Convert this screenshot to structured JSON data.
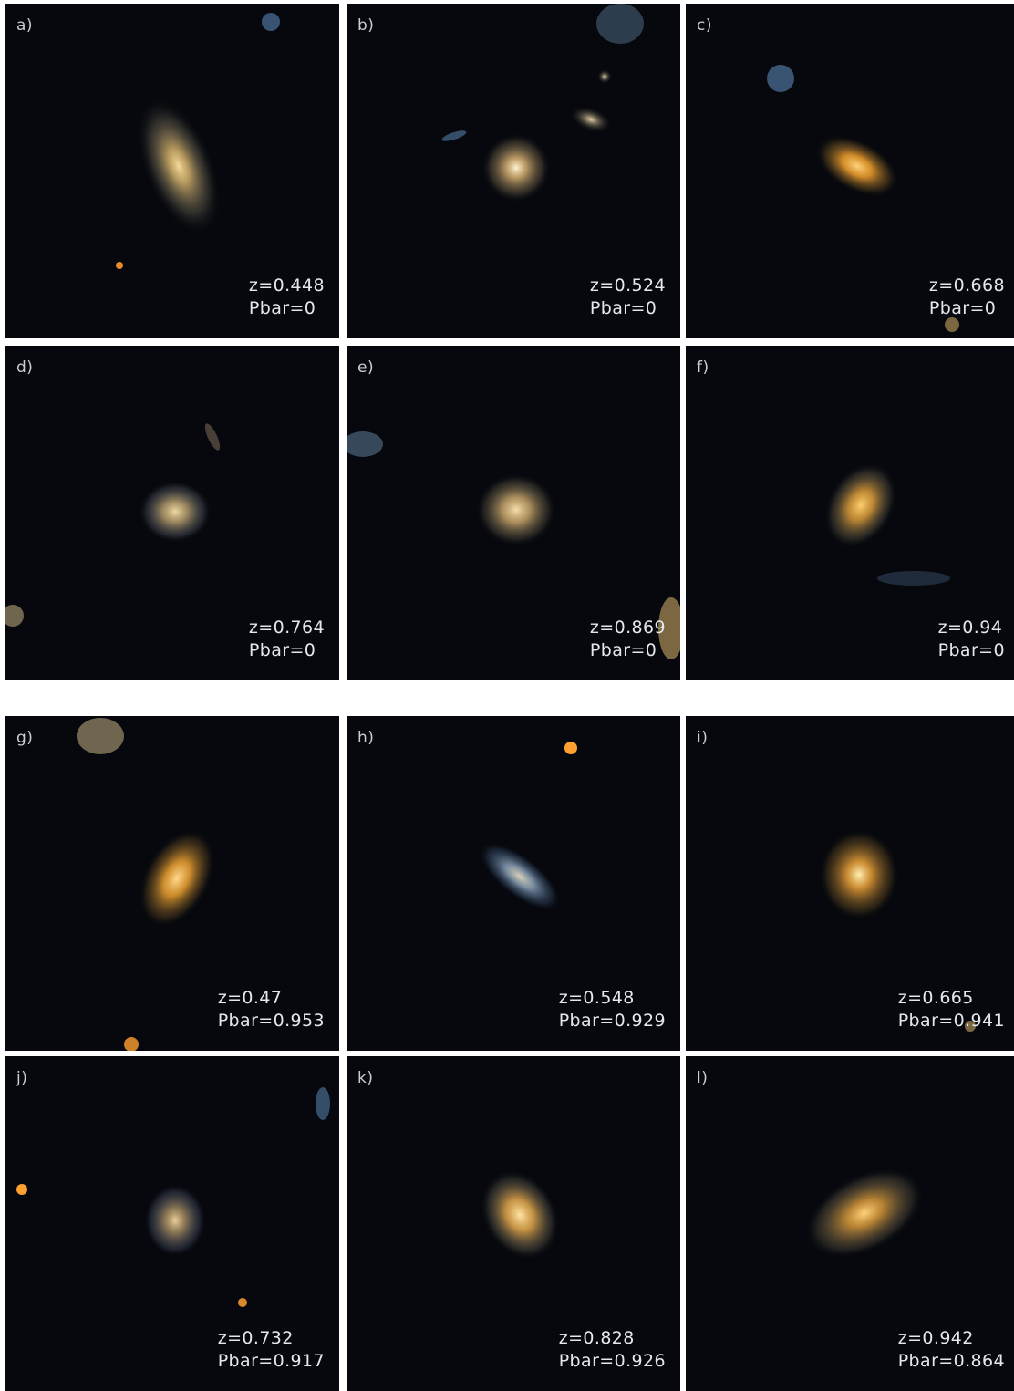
{
  "colors": {
    "sky": "#06080d",
    "label": "#e4e7ec",
    "galaxy_warm": "#e8a53a",
    "galaxy_pale": "#c9b489",
    "galaxy_blue": "#7fa4d1",
    "star_orange": "#ffa030"
  },
  "panels": [
    {
      "letter": "a)",
      "z": "z=0.448",
      "pbar": "Pbar=0",
      "icon": "edge-on-spiral-galaxy"
    },
    {
      "letter": "b)",
      "z": "z=0.524",
      "pbar": "Pbar=0",
      "icon": "face-on-spiral-galaxy"
    },
    {
      "letter": "c)",
      "z": "z=0.668",
      "pbar": "Pbar=0",
      "icon": "compact-galaxy"
    },
    {
      "letter": "d)",
      "z": "z=0.764",
      "pbar": "Pbar=0",
      "icon": "face-on-spiral-galaxy"
    },
    {
      "letter": "e)",
      "z": "z=0.869",
      "pbar": "Pbar=0",
      "icon": "diffuse-galaxy"
    },
    {
      "letter": "f)",
      "z": "z=0.94",
      "pbar": "Pbar=0",
      "icon": "compact-galaxy"
    },
    {
      "letter": "g)",
      "z": "z=0.47",
      "pbar": "Pbar=0.953",
      "icon": "barred-galaxy"
    },
    {
      "letter": "h)",
      "z": "z=0.548",
      "pbar": "Pbar=0.929",
      "icon": "barred-galaxy"
    },
    {
      "letter": "i)",
      "z": "z=0.665",
      "pbar": "Pbar=0.941",
      "icon": "barred-galaxy"
    },
    {
      "letter": "j)",
      "z": "z=0.732",
      "pbar": "Pbar=0.917",
      "icon": "barred-galaxy"
    },
    {
      "letter": "k)",
      "z": "z=0.828",
      "pbar": "Pbar=0.926",
      "icon": "barred-galaxy"
    },
    {
      "letter": "l)",
      "z": "z=0.942",
      "pbar": "Pbar=0.864",
      "icon": "barred-galaxy"
    }
  ]
}
